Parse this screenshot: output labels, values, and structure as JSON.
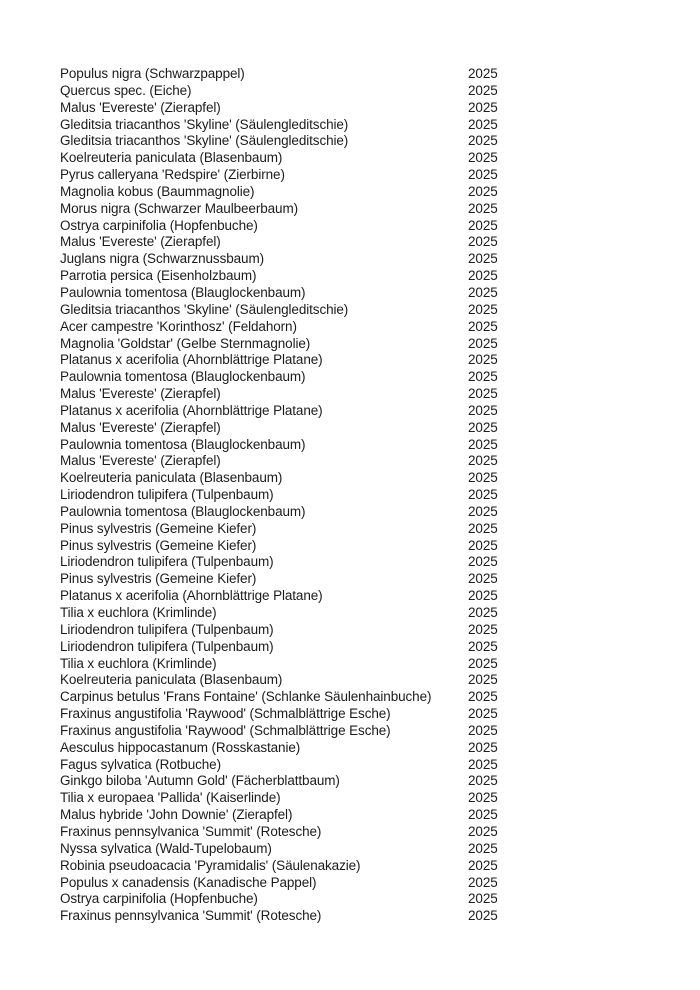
{
  "page": {
    "background_color": "#ffffff",
    "text_color": "#1c1c1c"
  },
  "list": {
    "rows": [
      {
        "name": "Populus nigra (Schwarzpappel)",
        "year": "2025"
      },
      {
        "name": "Quercus spec. (Eiche)",
        "year": "2025"
      },
      {
        "name": "Malus 'Evereste' (Zierapfel)",
        "year": "2025"
      },
      {
        "name": "Gleditsia triacanthos 'Skyline' (Säulengleditschie)",
        "year": "2025"
      },
      {
        "name": "Gleditsia triacanthos 'Skyline' (Säulengleditschie)",
        "year": "2025"
      },
      {
        "name": "Koelreuteria paniculata (Blasenbaum)",
        "year": "2025"
      },
      {
        "name": "Pyrus calleryana 'Redspire' (Zierbirne)",
        "year": "2025"
      },
      {
        "name": "Magnolia kobus (Baummagnolie)",
        "year": "2025"
      },
      {
        "name": "Morus nigra (Schwarzer Maulbeerbaum)",
        "year": "2025"
      },
      {
        "name": "Ostrya carpinifolia (Hopfenbuche)",
        "year": "2025"
      },
      {
        "name": "Malus 'Evereste' (Zierapfel)",
        "year": "2025"
      },
      {
        "name": "Juglans nigra (Schwarznussbaum)",
        "year": "2025"
      },
      {
        "name": "Parrotia persica (Eisenholzbaum)",
        "year": "2025"
      },
      {
        "name": "Paulownia tomentosa (Blauglockenbaum)",
        "year": "2025"
      },
      {
        "name": "Gleditsia triacanthos 'Skyline' (Säulengleditschie)",
        "year": "2025"
      },
      {
        "name": "Acer campestre 'Korinthosz' (Feldahorn)",
        "year": "2025"
      },
      {
        "name": "Magnolia 'Goldstar' (Gelbe Sternmagnolie)",
        "year": "2025"
      },
      {
        "name": "Platanus x acerifolia (Ahornblättrige Platane)",
        "year": "2025"
      },
      {
        "name": "Paulownia tomentosa (Blauglockenbaum)",
        "year": "2025"
      },
      {
        "name": "Malus 'Evereste' (Zierapfel)",
        "year": "2025"
      },
      {
        "name": "Platanus x acerifolia (Ahornblättrige Platane)",
        "year": "2025"
      },
      {
        "name": "Malus 'Evereste' (Zierapfel)",
        "year": "2025"
      },
      {
        "name": "Paulownia tomentosa (Blauglockenbaum)",
        "year": "2025"
      },
      {
        "name": "Malus 'Evereste' (Zierapfel)",
        "year": "2025"
      },
      {
        "name": "Koelreuteria paniculata (Blasenbaum)",
        "year": "2025"
      },
      {
        "name": "Liriodendron tulipifera (Tulpenbaum)",
        "year": "2025"
      },
      {
        "name": "Paulownia tomentosa (Blauglockenbaum)",
        "year": "2025"
      },
      {
        "name": "Pinus sylvestris (Gemeine Kiefer)",
        "year": "2025"
      },
      {
        "name": "Pinus sylvestris (Gemeine Kiefer)",
        "year": "2025"
      },
      {
        "name": "Liriodendron tulipifera (Tulpenbaum)",
        "year": "2025"
      },
      {
        "name": "Pinus sylvestris (Gemeine Kiefer)",
        "year": "2025"
      },
      {
        "name": "Platanus x acerifolia (Ahornblättrige Platane)",
        "year": "2025"
      },
      {
        "name": "Tilia x euchlora (Krimlinde)",
        "year": "2025"
      },
      {
        "name": "Liriodendron tulipifera (Tulpenbaum)",
        "year": "2025"
      },
      {
        "name": "Liriodendron tulipifera (Tulpenbaum)",
        "year": "2025"
      },
      {
        "name": "Tilia x euchlora (Krimlinde)",
        "year": "2025"
      },
      {
        "name": "Koelreuteria paniculata (Blasenbaum)",
        "year": "2025"
      },
      {
        "name": "Carpinus betulus 'Frans Fontaine' (Schlanke Säulenhainbuche)",
        "year": "2025"
      },
      {
        "name": "Fraxinus angustifolia 'Raywood' (Schmalblättrige Esche)",
        "year": "2025"
      },
      {
        "name": "Fraxinus angustifolia 'Raywood' (Schmalblättrige Esche)",
        "year": "2025"
      },
      {
        "name": "Aesculus hippocastanum (Rosskastanie)",
        "year": "2025"
      },
      {
        "name": "Fagus sylvatica (Rotbuche)",
        "year": "2025"
      },
      {
        "name": "Ginkgo biloba 'Autumn Gold' (Fächerblattbaum)",
        "year": "2025"
      },
      {
        "name": "Tilia x europaea 'Pallida' (Kaiserlinde)",
        "year": "2025"
      },
      {
        "name": "Malus hybride 'John Downie' (Zierapfel)",
        "year": "2025"
      },
      {
        "name": "Fraxinus pennsylvanica 'Summit' (Rotesche)",
        "year": "2025"
      },
      {
        "name": "Nyssa sylvatica (Wald-Tupelobaum)",
        "year": "2025"
      },
      {
        "name": "Robinia pseudoacacia 'Pyramidalis' (Säulenakazie)",
        "year": "2025"
      },
      {
        "name": "Populus x canadensis (Kanadische Pappel)",
        "year": "2025"
      },
      {
        "name": "Ostrya carpinifolia (Hopfenbuche)",
        "year": "2025"
      },
      {
        "name": "Fraxinus pennsylvanica 'Summit' (Rotesche)",
        "year": "2025"
      }
    ]
  }
}
